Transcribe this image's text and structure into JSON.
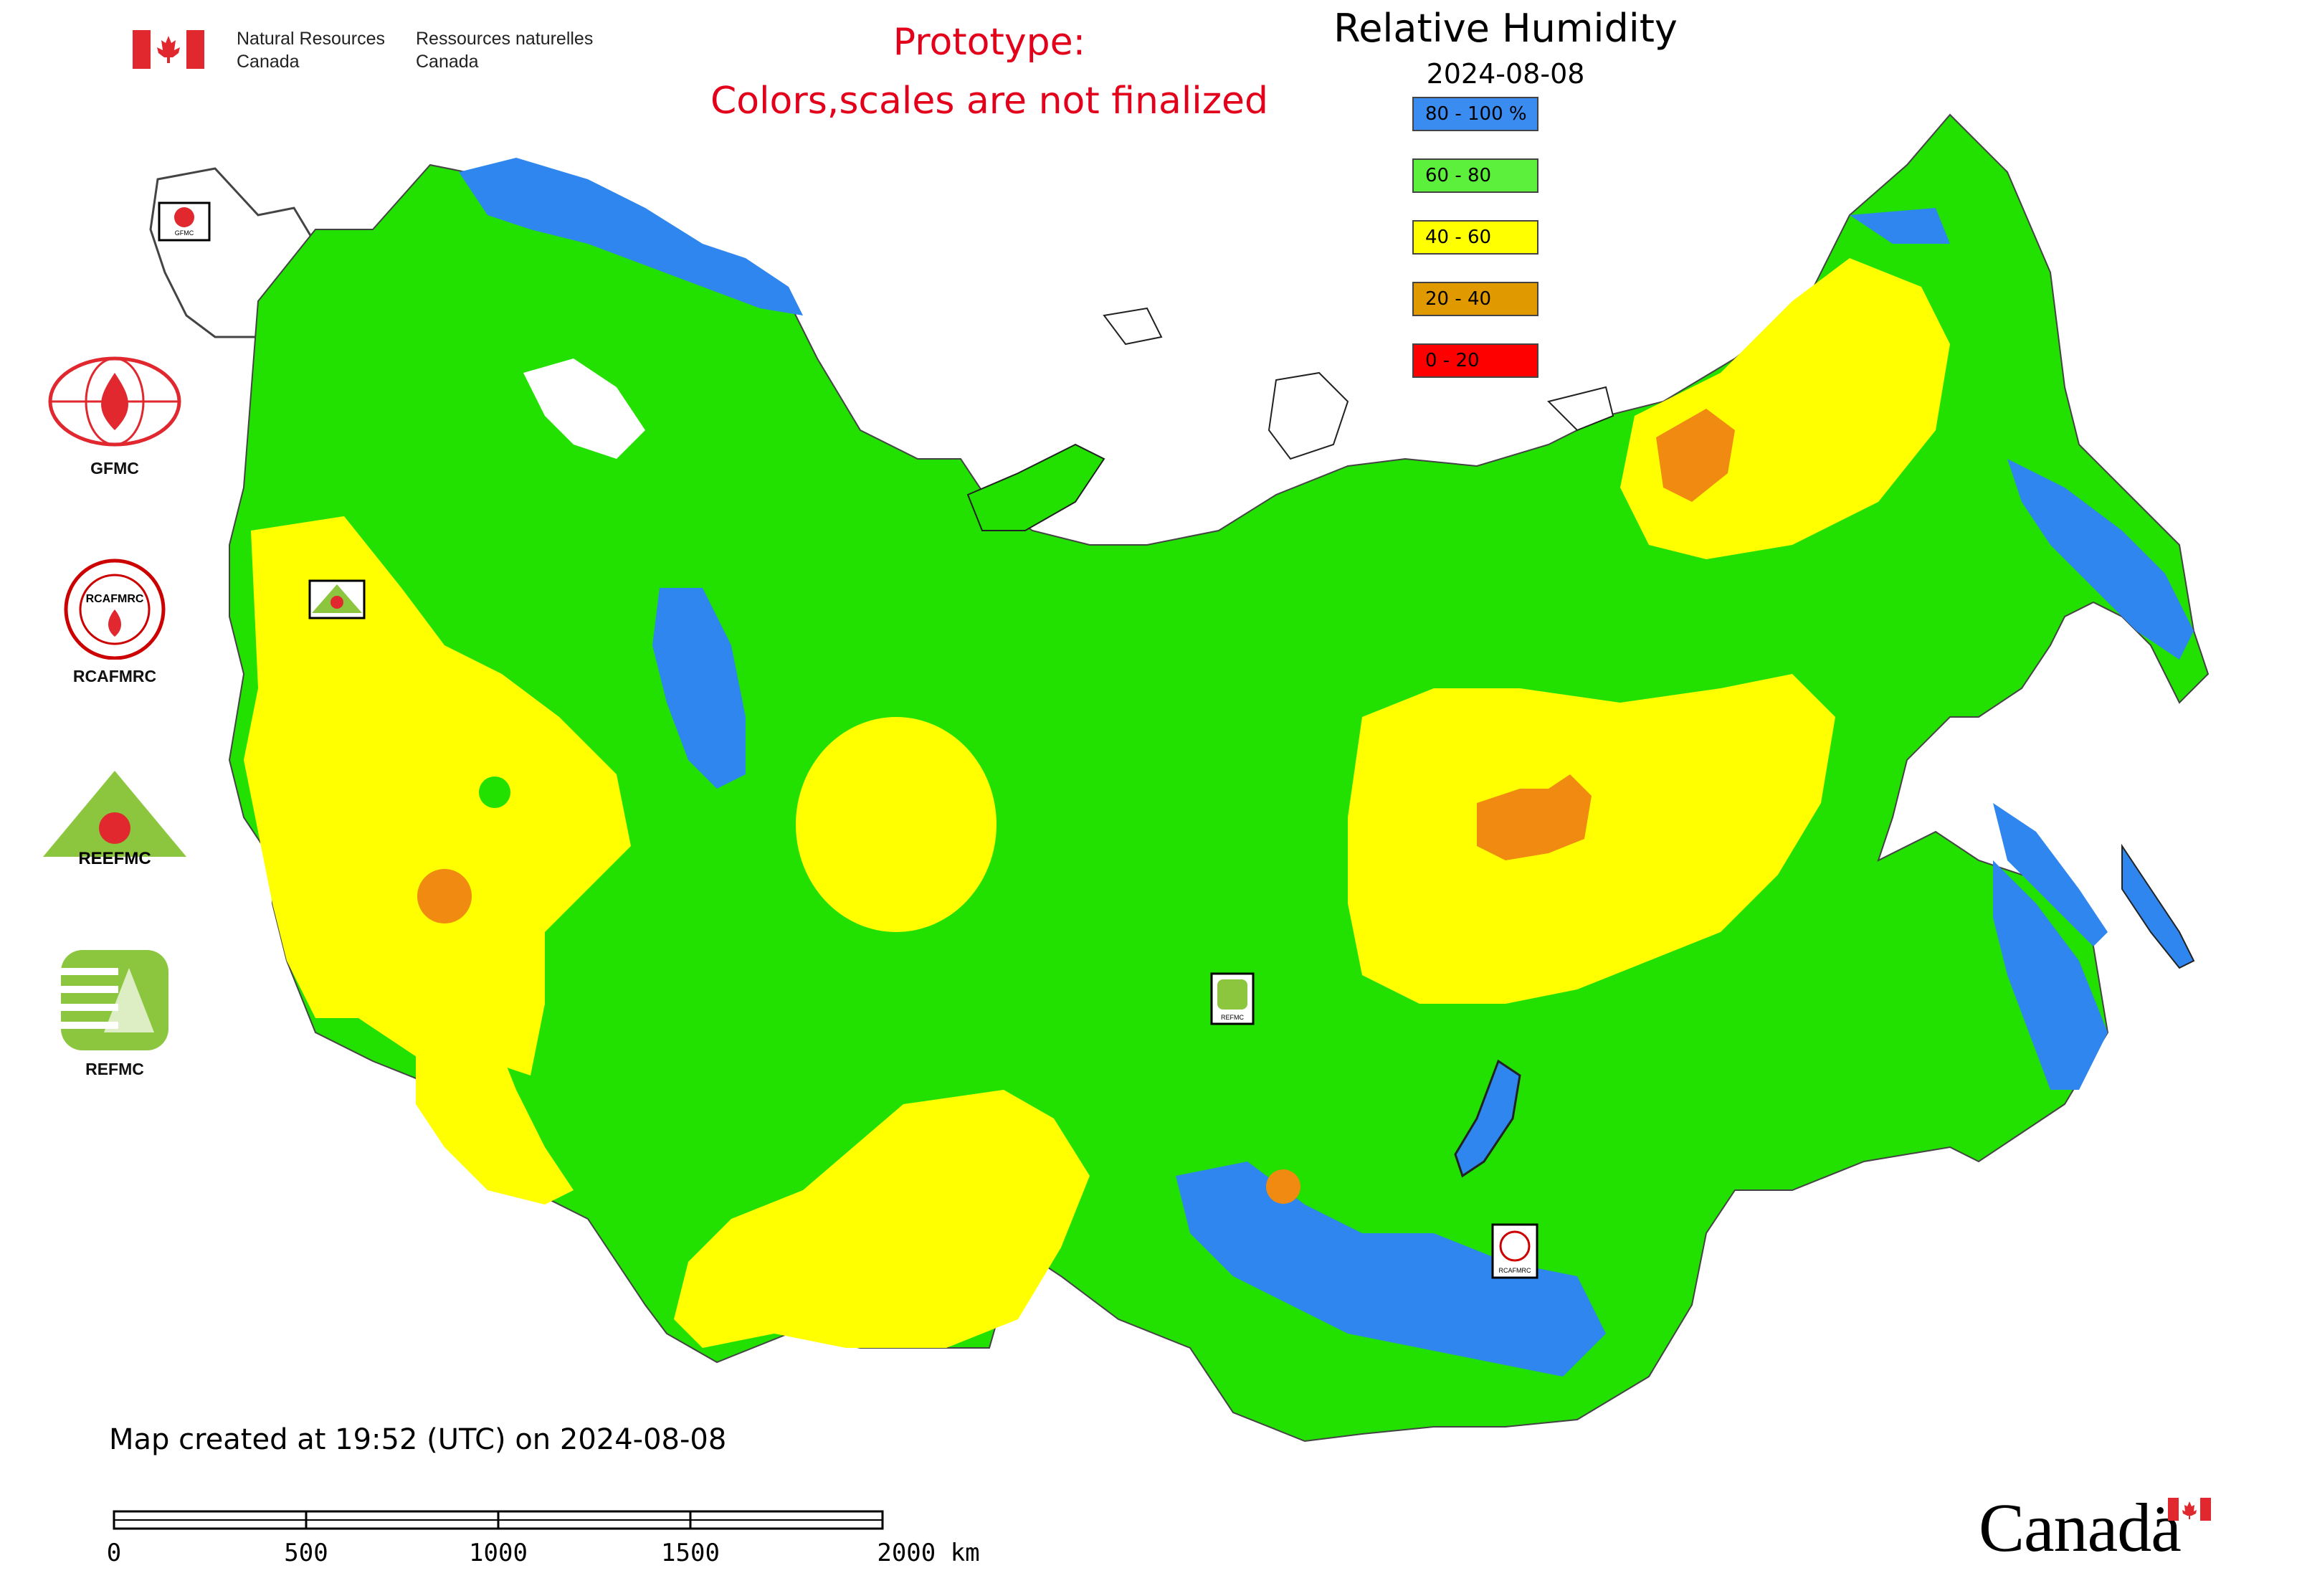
{
  "header": {
    "agency_en_line1": "Natural Resources",
    "agency_en_line2": "Canada",
    "agency_fr_line1": "Ressources naturelles",
    "agency_fr_line2": "Canada",
    "prototype_line1": "Prototype:",
    "prototype_line2": "Colors,scales are not finalized",
    "title": "Relative Humidity",
    "date": "2024-08-08"
  },
  "legend": {
    "items": [
      {
        "label": "80 - 100 %",
        "color": "#3a8cf0"
      },
      {
        "label": "60 - 80",
        "color": "#5cf03c"
      },
      {
        "label": "40 - 60",
        "color": "#ffff00"
      },
      {
        "label": "20 - 40",
        "color": "#e09a00"
      },
      {
        "label": "0 - 20",
        "color": "#ff0000"
      }
    ]
  },
  "map": {
    "colors": {
      "blue": "#2f86ee",
      "green": "#22e000",
      "yellow": "#ffff00",
      "orange": "#f08a10",
      "boundary": "#333333"
    },
    "markers": [
      {
        "label": "GFMC"
      },
      {
        "label": "REEFMC"
      },
      {
        "label": "REFMC"
      },
      {
        "label": "RCAFMRC"
      }
    ]
  },
  "logos": {
    "items": [
      {
        "label": "GFMC"
      },
      {
        "label": "RCAFMRC"
      },
      {
        "label": "REEFMC"
      },
      {
        "label": "REFMC"
      }
    ],
    "rcafmrc_badge": "RCAFMRC",
    "reefmc_badge": "REEFMC"
  },
  "footer": {
    "created": "Map created at 19:52 (UTC) on 2024-08-08",
    "scale_labels": [
      "0",
      "500",
      "1000",
      "1500",
      "2000 km"
    ],
    "wordmark": "Canadä"
  }
}
